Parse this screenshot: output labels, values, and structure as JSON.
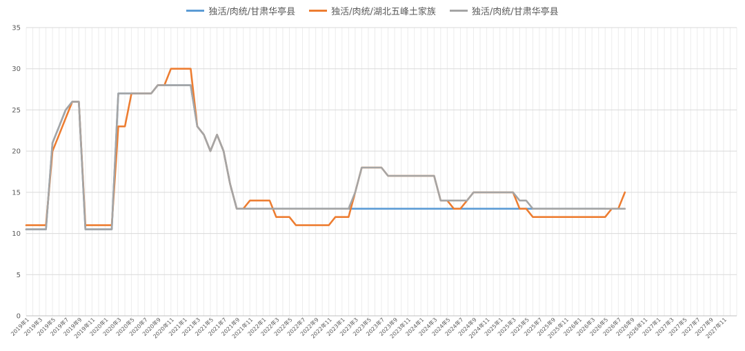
{
  "chart_data": {
    "type": "line",
    "title": "",
    "xlabel": "",
    "ylabel": "",
    "ylim": [
      0,
      35
    ],
    "yticks": [
      0,
      5,
      10,
      15,
      20,
      25,
      30,
      35
    ],
    "grid": true,
    "legend_position": "top",
    "x_tick_labels": [
      "2019年1",
      "2019年3",
      "2019年5",
      "2019年7",
      "2019年9",
      "2019年11",
      "2020年1",
      "2020年3",
      "2020年5",
      "2020年7",
      "2020年9",
      "2020年11",
      "2021年1",
      "2021年3",
      "2021年5",
      "2021年7",
      "2021年9",
      "2021年11",
      "2022年1",
      "2022年3",
      "2022年5",
      "2022年7",
      "2022年9",
      "2022年11",
      "2023年1",
      "2023年3",
      "2023年5",
      "2023年7",
      "2023年9",
      "2023年11",
      "2024年1",
      "2024年3",
      "2024年5",
      "2024年7",
      "2024年9",
      "2024年11",
      "2025年1",
      "2025年3",
      "2025年5",
      "2025年7",
      "2025年9",
      "2025年11",
      "2026年1",
      "2026年3",
      "2026年5",
      "2026年7",
      "2026年9",
      "2026年11",
      "2027年1",
      "2027年3",
      "2027年5",
      "2027年7",
      "2027年9",
      "2027年11"
    ],
    "months_total": 108,
    "series": [
      {
        "name": "独活/肉统/甘肃华亭县",
        "color": "#5B9BD5",
        "values": [
          10.5,
          10.5,
          10.5,
          10.5,
          21,
          23,
          25,
          26,
          26,
          10.5,
          10.5,
          10.5,
          10.5,
          10.5,
          27,
          27,
          27,
          27,
          27,
          27,
          28,
          28,
          28,
          28,
          28,
          28,
          23,
          22,
          20,
          22,
          20,
          16,
          13,
          13,
          13,
          13,
          13,
          13,
          13,
          13,
          13,
          13,
          13,
          13,
          13,
          13,
          13,
          13,
          13,
          13,
          13,
          13,
          13,
          13,
          13,
          13,
          13,
          13,
          13,
          13,
          13,
          13,
          13,
          13,
          13,
          13,
          13,
          13,
          13,
          13,
          13,
          13,
          13,
          13,
          13,
          13,
          13,
          13,
          13,
          13,
          13,
          13,
          13,
          13,
          13,
          13,
          13,
          13,
          13
        ]
      },
      {
        "name": "独活/肉统/湖北五峰土家族",
        "color": "#ED7D31",
        "values": [
          11,
          11,
          11,
          11,
          20,
          22,
          24,
          26,
          26,
          11,
          11,
          11,
          11,
          11,
          23,
          23,
          27,
          27,
          27,
          27,
          28,
          28,
          30,
          30,
          30,
          30,
          23,
          22,
          20,
          22,
          20,
          16,
          13,
          13,
          14,
          14,
          14,
          14,
          12,
          12,
          12,
          11,
          11,
          11,
          11,
          11,
          11,
          12,
          12,
          12,
          15,
          18,
          18,
          18,
          18,
          17,
          17,
          17,
          17,
          17,
          17,
          17,
          17,
          14,
          14,
          13,
          13,
          14,
          15,
          15,
          15,
          15,
          15,
          15,
          15,
          13,
          13,
          12,
          12,
          12,
          12,
          12,
          12,
          12,
          12,
          12,
          12,
          12,
          12,
          13,
          13,
          15
        ]
      },
      {
        "name": "独活/肉统/甘肃华亭县",
        "color": "#A5A5A5",
        "values": [
          10.5,
          10.5,
          10.5,
          10.5,
          21,
          23,
          25,
          26,
          26,
          10.5,
          10.5,
          10.5,
          10.5,
          10.5,
          27,
          27,
          27,
          27,
          27,
          27,
          28,
          28,
          28,
          28,
          28,
          28,
          23,
          22,
          20,
          22,
          20,
          16,
          13,
          13,
          13,
          13,
          13,
          13,
          13,
          13,
          13,
          13,
          13,
          13,
          13,
          13,
          13,
          13,
          13,
          13,
          15,
          18,
          18,
          18,
          18,
          17,
          17,
          17,
          17,
          17,
          17,
          17,
          17,
          14,
          14,
          14,
          14,
          14,
          15,
          15,
          15,
          15,
          15,
          15,
          15,
          14,
          14,
          13,
          13,
          13,
          13,
          13,
          13,
          13,
          13,
          13,
          13,
          13,
          13,
          13,
          13,
          13
        ]
      }
    ]
  }
}
